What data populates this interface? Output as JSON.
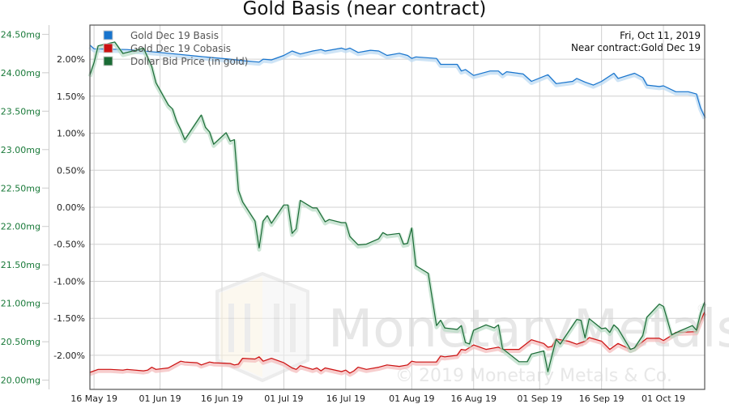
{
  "chart_data": {
    "type": "line",
    "title": "Gold Basis (near contract)",
    "annotation": [
      "Fri, Oct 11, 2019",
      "Near contract:Gold Dec 19"
    ],
    "watermark": {
      "brand": "MonetaryMetals",
      "copyright": "© 2019 Monetary Metals & Co."
    },
    "grid": true,
    "legend_position": "top-left",
    "xlim": [
      "2019-05-15",
      "2019-10-11"
    ],
    "x_ticks": [
      {
        "date": "2019-05-16",
        "label": "16 May 19"
      },
      {
        "date": "2019-06-01",
        "label": "01 Jun 19"
      },
      {
        "date": "2019-06-16",
        "label": "16 Jun 19"
      },
      {
        "date": "2019-07-01",
        "label": "01 Jul 19"
      },
      {
        "date": "2019-07-16",
        "label": "16 Jul 19"
      },
      {
        "date": "2019-08-01",
        "label": "01 Aug 19"
      },
      {
        "date": "2019-08-16",
        "label": "16 Aug 19"
      },
      {
        "date": "2019-09-01",
        "label": "01 Sep 19"
      },
      {
        "date": "2019-09-16",
        "label": "16 Sep 19"
      },
      {
        "date": "2019-10-01",
        "label": "01 Oct 19"
      }
    ],
    "y_left": {
      "unit": "%",
      "ylim": [
        -2.46,
        2.46
      ],
      "ticks": [
        2.0,
        1.5,
        1.0,
        0.5,
        0.0,
        -0.5,
        -1.0,
        -1.5,
        -2.0
      ],
      "tick_labels": [
        "2.00%",
        "1.50%",
        "1.00%",
        "0.50%",
        "0.00%",
        "-0.50%",
        "-1.00%",
        "-1.50%",
        "-2.00%"
      ]
    },
    "y_right": {
      "unit": "mg",
      "color": "#1a7a3a",
      "ylim": [
        19.88,
        24.62
      ],
      "ticks": [
        24.5,
        24.0,
        23.5,
        23.0,
        22.5,
        22.0,
        21.5,
        21.0,
        20.5,
        20.0
      ],
      "tick_labels": [
        "24.50mg",
        "24.00mg",
        "23.50mg",
        "23.00mg",
        "22.50mg",
        "22.00mg",
        "21.50mg",
        "21.00mg",
        "20.50mg",
        "20.00mg"
      ]
    },
    "series": [
      {
        "name": "Gold Dec 19 Basis",
        "color": "#1874cd",
        "axis": "y_left",
        "points": [
          [
            "2019-05-15",
            2.19
          ],
          [
            "2019-05-16",
            2.14
          ],
          [
            "2019-05-24",
            2.13
          ],
          [
            "2019-06-01",
            2.09
          ],
          [
            "2019-06-10",
            2.04
          ],
          [
            "2019-06-18",
            2.0
          ],
          [
            "2019-06-21",
            1.98
          ],
          [
            "2019-06-25",
            1.96
          ],
          [
            "2019-06-26",
            2.0
          ],
          [
            "2019-06-28",
            1.99
          ],
          [
            "2019-07-01",
            2.05
          ],
          [
            "2019-07-03",
            2.11
          ],
          [
            "2019-07-05",
            2.07
          ],
          [
            "2019-07-08",
            2.11
          ],
          [
            "2019-07-10",
            2.13
          ],
          [
            "2019-07-11",
            2.11
          ],
          [
            "2019-07-15",
            2.15
          ],
          [
            "2019-07-16",
            2.13
          ],
          [
            "2019-07-17",
            2.15
          ],
          [
            "2019-07-19",
            2.09
          ],
          [
            "2019-07-21",
            2.11
          ],
          [
            "2019-07-22",
            2.12
          ],
          [
            "2019-07-24",
            2.11
          ],
          [
            "2019-07-26",
            2.05
          ],
          [
            "2019-07-29",
            2.08
          ],
          [
            "2019-07-31",
            2.05
          ],
          [
            "2019-08-01",
            2.01
          ],
          [
            "2019-08-02",
            2.03
          ],
          [
            "2019-08-07",
            2.01
          ],
          [
            "2019-08-08",
            1.93
          ],
          [
            "2019-08-12",
            1.93
          ],
          [
            "2019-08-13",
            1.84
          ],
          [
            "2019-08-14",
            1.86
          ],
          [
            "2019-08-16",
            1.78
          ],
          [
            "2019-08-20",
            1.84
          ],
          [
            "2019-08-22",
            1.84
          ],
          [
            "2019-08-23",
            1.79
          ],
          [
            "2019-08-24",
            1.83
          ],
          [
            "2019-08-28",
            1.8
          ],
          [
            "2019-08-30",
            1.7
          ],
          [
            "2019-09-03",
            1.79
          ],
          [
            "2019-09-05",
            1.67
          ],
          [
            "2019-09-09",
            1.7
          ],
          [
            "2019-09-10",
            1.74
          ],
          [
            "2019-09-12",
            1.69
          ],
          [
            "2019-09-14",
            1.65
          ],
          [
            "2019-09-16",
            1.7
          ],
          [
            "2019-09-19",
            1.81
          ],
          [
            "2019-09-20",
            1.74
          ],
          [
            "2019-09-24",
            1.81
          ],
          [
            "2019-09-26",
            1.75
          ],
          [
            "2019-09-27",
            1.65
          ],
          [
            "2019-09-30",
            1.63
          ],
          [
            "2019-10-01",
            1.64
          ],
          [
            "2019-10-04",
            1.56
          ],
          [
            "2019-10-07",
            1.56
          ],
          [
            "2019-10-09",
            1.53
          ],
          [
            "2019-10-10",
            1.34
          ],
          [
            "2019-10-11",
            1.22
          ]
        ]
      },
      {
        "name": "Gold Dec 19 Cobasis",
        "color": "#cc1111",
        "axis": "y_left",
        "points": [
          [
            "2019-05-15",
            -2.23
          ],
          [
            "2019-05-17",
            -2.19
          ],
          [
            "2019-05-20",
            -2.19
          ],
          [
            "2019-05-23",
            -2.2
          ],
          [
            "2019-05-24",
            -2.19
          ],
          [
            "2019-05-28",
            -2.21
          ],
          [
            "2019-05-29",
            -2.2
          ],
          [
            "2019-05-30",
            -2.16
          ],
          [
            "2019-05-31",
            -2.19
          ],
          [
            "2019-06-03",
            -2.17
          ],
          [
            "2019-06-06",
            -2.08
          ],
          [
            "2019-06-07",
            -2.09
          ],
          [
            "2019-06-10",
            -2.1
          ],
          [
            "2019-06-11",
            -2.13
          ],
          [
            "2019-06-13",
            -2.09
          ],
          [
            "2019-06-14",
            -2.1
          ],
          [
            "2019-06-18",
            -2.11
          ],
          [
            "2019-06-19",
            -2.13
          ],
          [
            "2019-06-20",
            -2.12
          ],
          [
            "2019-06-21",
            -2.04
          ],
          [
            "2019-06-24",
            -2.05
          ],
          [
            "2019-06-25",
            -2.02
          ],
          [
            "2019-06-26",
            -2.08
          ],
          [
            "2019-06-28",
            -2.04
          ],
          [
            "2019-07-01",
            -2.1
          ],
          [
            "2019-07-03",
            -2.17
          ],
          [
            "2019-07-04",
            -2.19
          ],
          [
            "2019-07-05",
            -2.14
          ],
          [
            "2019-07-08",
            -2.19
          ],
          [
            "2019-07-09",
            -2.17
          ],
          [
            "2019-07-10",
            -2.21
          ],
          [
            "2019-07-11",
            -2.17
          ],
          [
            "2019-07-15",
            -2.22
          ],
          [
            "2019-07-16",
            -2.2
          ],
          [
            "2019-07-17",
            -2.24
          ],
          [
            "2019-07-18",
            -2.21
          ],
          [
            "2019-07-19",
            -2.16
          ],
          [
            "2019-07-21",
            -2.19
          ],
          [
            "2019-07-24",
            -2.16
          ],
          [
            "2019-07-26",
            -2.13
          ],
          [
            "2019-07-29",
            -2.15
          ],
          [
            "2019-07-31",
            -2.13
          ],
          [
            "2019-08-01",
            -2.08
          ],
          [
            "2019-08-02",
            -2.09
          ],
          [
            "2019-08-07",
            -2.09
          ],
          [
            "2019-08-08",
            -2.01
          ],
          [
            "2019-08-09",
            -2.02
          ],
          [
            "2019-08-12",
            -2.0
          ],
          [
            "2019-08-13",
            -1.92
          ],
          [
            "2019-08-14",
            -1.93
          ],
          [
            "2019-08-16",
            -1.86
          ],
          [
            "2019-08-19",
            -1.92
          ],
          [
            "2019-08-21",
            -1.9
          ],
          [
            "2019-08-22",
            -1.89
          ],
          [
            "2019-08-23",
            -1.92
          ],
          [
            "2019-08-27",
            -1.92
          ],
          [
            "2019-08-30",
            -1.79
          ],
          [
            "2019-09-02",
            -1.84
          ],
          [
            "2019-09-03",
            -1.89
          ],
          [
            "2019-09-04",
            -1.88
          ],
          [
            "2019-09-05",
            -1.78
          ],
          [
            "2019-09-08",
            -1.81
          ],
          [
            "2019-09-10",
            -1.85
          ],
          [
            "2019-09-12",
            -1.81
          ],
          [
            "2019-09-13",
            -1.76
          ],
          [
            "2019-09-16",
            -1.81
          ],
          [
            "2019-09-18",
            -1.92
          ],
          [
            "2019-09-20",
            -1.84
          ],
          [
            "2019-09-23",
            -1.92
          ],
          [
            "2019-09-24",
            -1.9
          ],
          [
            "2019-09-27",
            -1.77
          ],
          [
            "2019-09-30",
            -1.77
          ],
          [
            "2019-10-01",
            -1.8
          ],
          [
            "2019-10-03",
            -1.73
          ],
          [
            "2019-10-04",
            -1.69
          ],
          [
            "2019-10-09",
            -1.68
          ],
          [
            "2019-10-10",
            -1.54
          ],
          [
            "2019-10-11",
            -1.41
          ]
        ]
      },
      {
        "name": "Dollar Bid Price (in gold)",
        "color": "#1a6b35",
        "axis": "y_right",
        "points": [
          [
            "2019-05-15",
            23.97
          ],
          [
            "2019-05-16",
            24.13
          ],
          [
            "2019-05-17",
            24.35
          ],
          [
            "2019-05-21",
            24.4
          ],
          [
            "2019-05-23",
            24.25
          ],
          [
            "2019-05-28",
            24.32
          ],
          [
            "2019-05-30",
            24.08
          ],
          [
            "2019-05-31",
            23.87
          ],
          [
            "2019-06-03",
            23.58
          ],
          [
            "2019-06-04",
            23.53
          ],
          [
            "2019-06-05",
            23.37
          ],
          [
            "2019-06-06",
            23.26
          ],
          [
            "2019-06-07",
            23.13
          ],
          [
            "2019-06-11",
            23.45
          ],
          [
            "2019-06-12",
            23.29
          ],
          [
            "2019-06-13",
            23.23
          ],
          [
            "2019-06-14",
            23.07
          ],
          [
            "2019-06-17",
            23.22
          ],
          [
            "2019-06-18",
            23.11
          ],
          [
            "2019-06-19",
            23.13
          ],
          [
            "2019-06-20",
            22.47
          ],
          [
            "2019-06-21",
            22.32
          ],
          [
            "2019-06-24",
            22.07
          ],
          [
            "2019-06-25",
            21.72
          ],
          [
            "2019-06-26",
            22.07
          ],
          [
            "2019-06-27",
            22.14
          ],
          [
            "2019-06-28",
            22.04
          ],
          [
            "2019-07-01",
            22.28
          ],
          [
            "2019-07-02",
            22.28
          ],
          [
            "2019-07-03",
            21.91
          ],
          [
            "2019-07-04",
            21.97
          ],
          [
            "2019-07-05",
            22.34
          ],
          [
            "2019-07-08",
            22.24
          ],
          [
            "2019-07-09",
            22.24
          ],
          [
            "2019-07-11",
            22.06
          ],
          [
            "2019-07-12",
            22.09
          ],
          [
            "2019-07-15",
            22.05
          ],
          [
            "2019-07-16",
            22.05
          ],
          [
            "2019-07-17",
            21.87
          ],
          [
            "2019-07-19",
            21.76
          ],
          [
            "2019-07-21",
            21.77
          ],
          [
            "2019-07-24",
            21.84
          ],
          [
            "2019-07-25",
            21.92
          ],
          [
            "2019-07-26",
            21.89
          ],
          [
            "2019-07-29",
            21.91
          ],
          [
            "2019-07-30",
            21.77
          ],
          [
            "2019-07-31",
            21.78
          ],
          [
            "2019-08-01",
            21.98
          ],
          [
            "2019-08-02",
            21.49
          ],
          [
            "2019-08-05",
            21.39
          ],
          [
            "2019-08-07",
            20.71
          ],
          [
            "2019-08-08",
            20.78
          ],
          [
            "2019-08-09",
            20.68
          ],
          [
            "2019-08-12",
            20.66
          ],
          [
            "2019-08-13",
            20.71
          ],
          [
            "2019-08-14",
            20.49
          ],
          [
            "2019-08-15",
            20.47
          ],
          [
            "2019-08-16",
            20.65
          ],
          [
            "2019-08-19",
            20.72
          ],
          [
            "2019-08-21",
            20.68
          ],
          [
            "2019-08-22",
            20.72
          ],
          [
            "2019-08-23",
            20.41
          ],
          [
            "2019-08-27",
            20.24
          ],
          [
            "2019-08-29",
            20.24
          ],
          [
            "2019-08-30",
            20.34
          ],
          [
            "2019-09-02",
            20.38
          ],
          [
            "2019-09-03",
            20.11
          ],
          [
            "2019-09-04",
            20.32
          ],
          [
            "2019-09-05",
            20.53
          ],
          [
            "2019-09-06",
            20.47
          ],
          [
            "2019-09-10",
            20.79
          ],
          [
            "2019-09-11",
            20.78
          ],
          [
            "2019-09-12",
            20.55
          ],
          [
            "2019-09-13",
            20.8
          ],
          [
            "2019-09-16",
            20.67
          ],
          [
            "2019-09-17",
            20.68
          ],
          [
            "2019-09-18",
            20.62
          ],
          [
            "2019-09-19",
            20.72
          ],
          [
            "2019-09-20",
            20.67
          ],
          [
            "2019-09-23",
            20.4
          ],
          [
            "2019-09-24",
            20.42
          ],
          [
            "2019-09-26",
            20.58
          ],
          [
            "2019-09-27",
            20.82
          ],
          [
            "2019-09-30",
            20.99
          ],
          [
            "2019-10-01",
            20.96
          ],
          [
            "2019-10-03",
            20.59
          ],
          [
            "2019-10-05",
            20.64
          ],
          [
            "2019-10-08",
            20.71
          ],
          [
            "2019-10-09",
            20.65
          ],
          [
            "2019-10-10",
            20.87
          ],
          [
            "2019-10-11",
            21.02
          ]
        ]
      }
    ]
  }
}
